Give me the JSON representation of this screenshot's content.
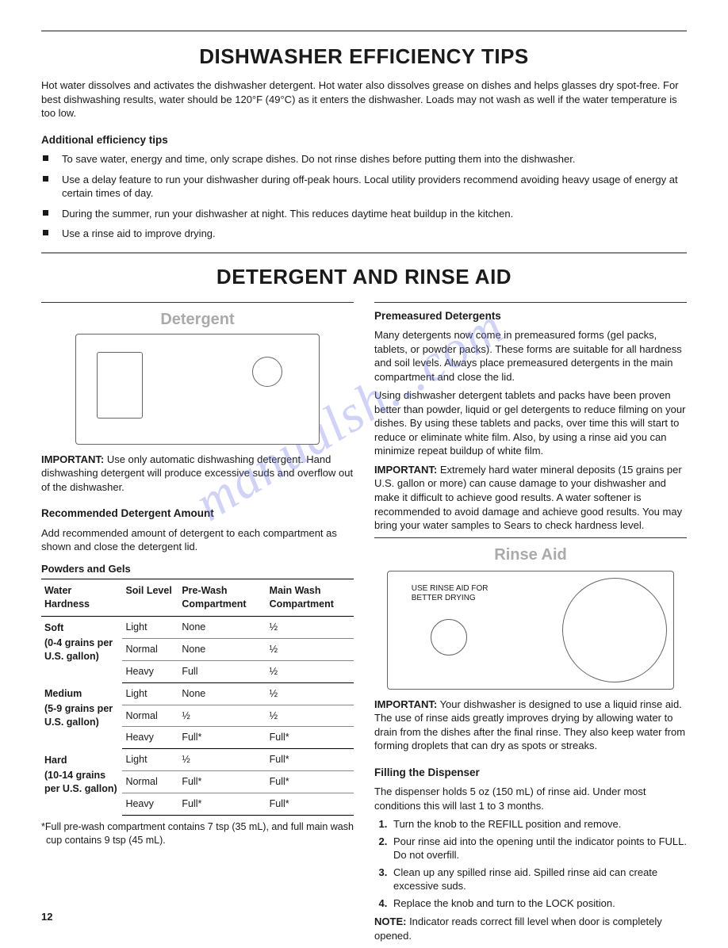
{
  "page_number": "12",
  "watermark": "manualsh...com",
  "section1": {
    "title": "DISHWASHER EFFICIENCY TIPS",
    "intro": "Hot water dissolves and activates the dishwasher detergent. Hot water also dissolves grease on dishes and helps glasses dry spot-free. For best dishwashing results, water should be 120°F (49°C) as it enters the dishwasher. Loads may not wash as well if the water temperature is too low.",
    "tips_heading": "Additional efficiency tips",
    "tips": [
      "To save water, energy and time, only scrape dishes. Do not rinse dishes before putting them into the dishwasher.",
      "Use a delay feature to run your dishwasher during off-peak hours. Local utility providers recommend avoiding heavy usage of energy at certain times of day.",
      "During the summer, run your dishwasher at night. This reduces daytime heat buildup in the kitchen.",
      "Use a rinse aid to improve drying."
    ]
  },
  "section2": {
    "title": "DETERGENT AND RINSE AID",
    "left": {
      "illust_label": "Detergent",
      "important_label": "IMPORTANT:",
      "important_text": " Use only automatic dishwashing detergent. Hand dishwashing detergent will produce excessive suds and overflow out of the dishwasher.",
      "rec_heading": "Recommended Detergent Amount",
      "rec_text": "Add recommended amount of detergent to each compartment as shown and close the detergent lid.",
      "table_title": "Powders and Gels",
      "headers": [
        "Water Hardness",
        "Soil Level",
        "Pre-Wash Compartment",
        "Main Wash Compartment"
      ],
      "groups": [
        {
          "hardness": "Soft",
          "range": "(0-4 grains per U.S. gallon)",
          "rows": [
            {
              "soil": "Light",
              "pre": "None",
              "main": "½"
            },
            {
              "soil": "Normal",
              "pre": "None",
              "main": "½"
            },
            {
              "soil": "Heavy",
              "pre": "Full",
              "main": "½"
            }
          ]
        },
        {
          "hardness": "Medium",
          "range": "(5-9 grains per U.S. gallon)",
          "rows": [
            {
              "soil": "Light",
              "pre": "None",
              "main": "½"
            },
            {
              "soil": "Normal",
              "pre": "½",
              "main": "½"
            },
            {
              "soil": "Heavy",
              "pre": "Full*",
              "main": "Full*"
            }
          ]
        },
        {
          "hardness": "Hard",
          "range": "(10-14 grains per U.S. gallon)",
          "rows": [
            {
              "soil": "Light",
              "pre": "½",
              "main": "Full*"
            },
            {
              "soil": "Normal",
              "pre": "Full*",
              "main": "Full*"
            },
            {
              "soil": "Heavy",
              "pre": "Full*",
              "main": "Full*"
            }
          ]
        }
      ],
      "footnote": "*Full pre-wash compartment contains 7 tsp (35 mL), and full main wash cup contains 9 tsp (45 mL)."
    },
    "right": {
      "pre_heading": "Premeasured Detergents",
      "pre_p1": "Many detergents now come in premeasured forms (gel packs, tablets, or powder packs). These forms are suitable for all hardness and soil levels. Always place premeasured detergents in the main compartment and close the lid.",
      "pre_p2": "Using dishwasher detergent tablets and packs have been proven better than powder, liquid or gel detergents to reduce filming on your dishes. By using these tablets and packs, over time this will start to reduce or eliminate white film. Also, by using a rinse aid you can minimize repeat buildup of white film.",
      "pre_imp_label": "IMPORTANT:",
      "pre_imp_text": " Extremely hard water mineral deposits (15 grains per U.S. gallon or more) can cause damage to your dishwasher and make it difficult to achieve good results. A water softener is recommended to avoid damage and achieve good results. You may bring your water samples to Sears to check hardness level.",
      "rinse_label": "Rinse Aid",
      "rinse_box_text": "USE RINSE AID FOR\nBETTER DRYING",
      "rinse_imp_label": "IMPORTANT:",
      "rinse_imp_text": " Your dishwasher is designed to use a liquid rinse aid. The use of rinse aids greatly improves drying by allowing water to drain from the dishes after the final rinse. They also keep water from forming droplets that can dry as spots or streaks.",
      "fill_heading": "Filling the Dispenser",
      "fill_intro": "The dispenser holds 5 oz (150 mL) of rinse aid. Under most conditions this will last 1 to 3 months.",
      "steps": [
        "Turn the knob to the REFILL position and remove.",
        "Pour rinse aid into the opening until the indicator points to FULL. Do not overfill.",
        "Clean up any spilled rinse aid. Spilled rinse aid can create excessive suds.",
        "Replace the knob and turn to the LOCK position."
      ],
      "note_label": "NOTE:",
      "note_text": " Indicator reads correct fill level when door is completely opened."
    }
  }
}
